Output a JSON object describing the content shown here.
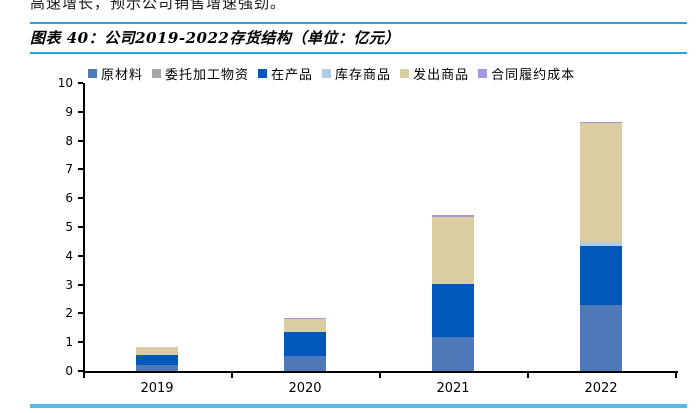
{
  "intro_text": "高速增长，预示公司销售增速强劲。",
  "figure": {
    "label": "图表 40",
    "title": "图表 40：公司2019-2022存货结构（单位：亿元）",
    "unit": "亿元"
  },
  "colors": {
    "title_rule_blue": "#2aa2dc",
    "bottom_rule_blue": "#57bae9",
    "axis_color": "#000000",
    "background": "#ffffff"
  },
  "chart_data": {
    "type": "bar",
    "stacked": true,
    "title": "公司2019-2022存货结构",
    "unit": "亿元",
    "xlabel": "",
    "ylabel": "",
    "ylim": [
      0,
      10
    ],
    "yticks": [
      0,
      1,
      2,
      3,
      4,
      5,
      6,
      7,
      8,
      9,
      10
    ],
    "grid": false,
    "legend_position": "top",
    "categories": [
      "2019",
      "2020",
      "2021",
      "2022"
    ],
    "series": [
      {
        "name": "原材料",
        "color": "#4d79b9",
        "values": [
          0.2,
          0.52,
          1.18,
          2.28
        ]
      },
      {
        "name": "委托加工物资",
        "color": "#a6a6a6",
        "values": [
          0,
          0,
          0,
          0
        ]
      },
      {
        "name": "在产品",
        "color": "#0058ba",
        "values": [
          0.37,
          0.85,
          1.84,
          2.06
        ]
      },
      {
        "name": "库存商品",
        "color": "#aecde4",
        "values": [
          0,
          0,
          0,
          0.13
        ]
      },
      {
        "name": "发出商品",
        "color": "#d9cda1",
        "values": [
          0.28,
          0.43,
          2.33,
          4.14
        ]
      },
      {
        "name": "合同履约成本",
        "color": "#a596e0",
        "values": [
          0,
          0.04,
          0.05,
          0.05
        ]
      }
    ],
    "totals": [
      0.85,
      1.84,
      5.4,
      8.66
    ]
  }
}
